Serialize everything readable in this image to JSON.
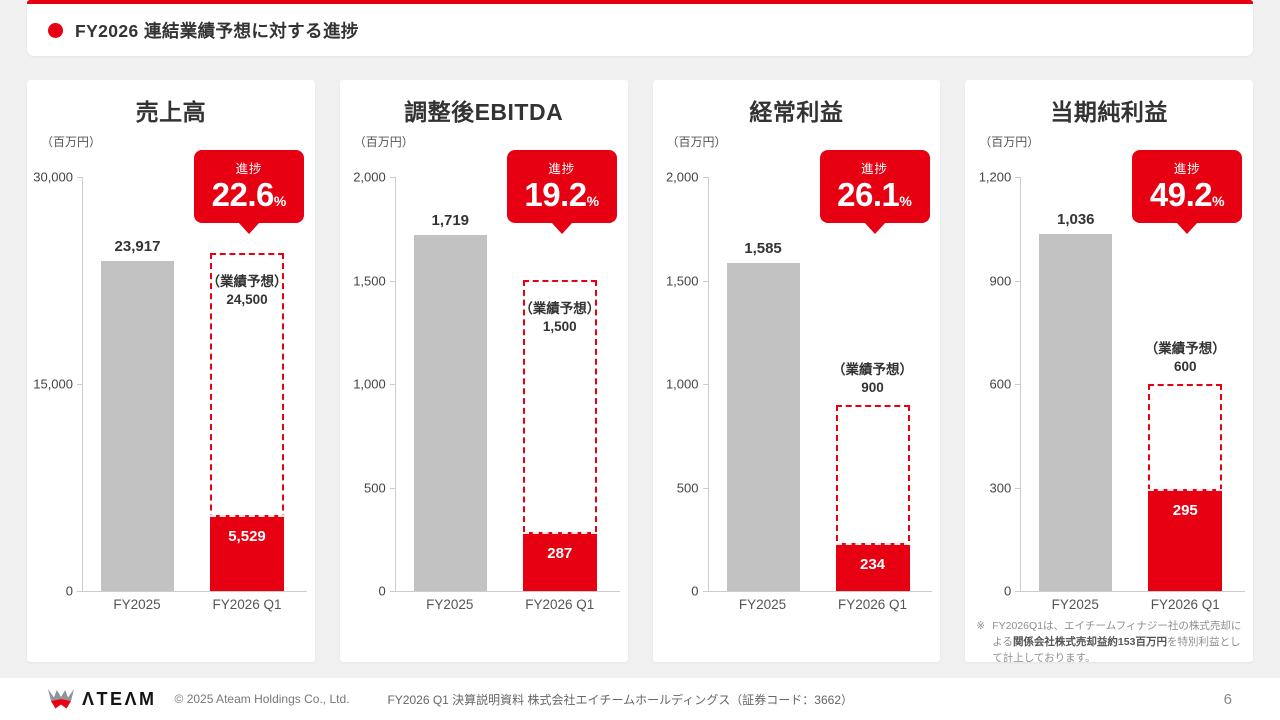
{
  "colors": {
    "accent_red": "#e60012",
    "bar_gray": "#c2c2c2"
  },
  "header": {
    "title": "FY2026 連結業績予想に対する進捗"
  },
  "footer": {
    "logo_text": "ΛTEΛM",
    "copyright": "© 2025 Ateam Holdings Co., Ltd.",
    "document_title": "FY2026 Q1 決算説明資料 株式会社エイチームホールディングス（証券コード：3662）",
    "page_number": "6"
  },
  "chart_data": [
    {
      "type": "bar",
      "title": "売上高",
      "unit": "（百万円）",
      "ymax": 30000,
      "yticks": [
        {
          "value": 30000,
          "label": "30,000"
        },
        {
          "value": 15000,
          "label": "15,000"
        },
        {
          "value": 0,
          "label": "0"
        }
      ],
      "categories": [
        "FY2025",
        "FY2026 Q1"
      ],
      "prev": {
        "value": 23917,
        "label": "23,917"
      },
      "actual": {
        "value": 5529,
        "label": "5,529"
      },
      "forecast": {
        "value": 24500,
        "label": "24,500",
        "caption": "（業績予想）",
        "label_position": "inside"
      },
      "progress": {
        "caption": "進捗",
        "value": "22.6",
        "unit": "%"
      }
    },
    {
      "type": "bar",
      "title": "調整後EBITDA",
      "unit": "（百万円）",
      "ymax": 2000,
      "yticks": [
        {
          "value": 2000,
          "label": "2,000"
        },
        {
          "value": 1500,
          "label": "1,500"
        },
        {
          "value": 1000,
          "label": "1,000"
        },
        {
          "value": 500,
          "label": "500"
        },
        {
          "value": 0,
          "label": "0"
        }
      ],
      "categories": [
        "FY2025",
        "FY2026 Q1"
      ],
      "prev": {
        "value": 1719,
        "label": "1,719"
      },
      "actual": {
        "value": 287,
        "label": "287"
      },
      "forecast": {
        "value": 1500,
        "label": "1,500",
        "caption": "（業績予想）",
        "label_position": "inside"
      },
      "progress": {
        "caption": "進捗",
        "value": "19.2",
        "unit": "%"
      }
    },
    {
      "type": "bar",
      "title": "経常利益",
      "unit": "（百万円）",
      "ymax": 2000,
      "yticks": [
        {
          "value": 2000,
          "label": "2,000"
        },
        {
          "value": 1500,
          "label": "1,500"
        },
        {
          "value": 1000,
          "label": "1,000"
        },
        {
          "value": 500,
          "label": "500"
        },
        {
          "value": 0,
          "label": "0"
        }
      ],
      "categories": [
        "FY2025",
        "FY2026 Q1"
      ],
      "prev": {
        "value": 1585,
        "label": "1,585"
      },
      "actual": {
        "value": 234,
        "label": "234"
      },
      "forecast": {
        "value": 900,
        "label": "900",
        "caption": "（業績予想）",
        "label_position": "above"
      },
      "progress": {
        "caption": "進捗",
        "value": "26.1",
        "unit": "%"
      }
    },
    {
      "type": "bar",
      "title": "当期純利益",
      "unit": "（百万円）",
      "ymax": 1200,
      "yticks": [
        {
          "value": 1200,
          "label": "1,200"
        },
        {
          "value": 900,
          "label": "900"
        },
        {
          "value": 600,
          "label": "600"
        },
        {
          "value": 300,
          "label": "300"
        },
        {
          "value": 0,
          "label": "0"
        }
      ],
      "categories": [
        "FY2025",
        "FY2026 Q1"
      ],
      "prev": {
        "value": 1036,
        "label": "1,036"
      },
      "actual": {
        "value": 295,
        "label": "295"
      },
      "forecast": {
        "value": 600,
        "label": "600",
        "caption": "（業績予想）",
        "label_position": "above"
      },
      "progress": {
        "caption": "進捗",
        "value": "49.2",
        "unit": "%"
      },
      "footnote": {
        "marker": "※",
        "text_before": "FY2026Q1は、エイチームフィナジー社の株式売却による",
        "text_bold": "関係会社株式売却益約153百万円",
        "text_after": "を特別利益として計上しております。"
      }
    }
  ]
}
